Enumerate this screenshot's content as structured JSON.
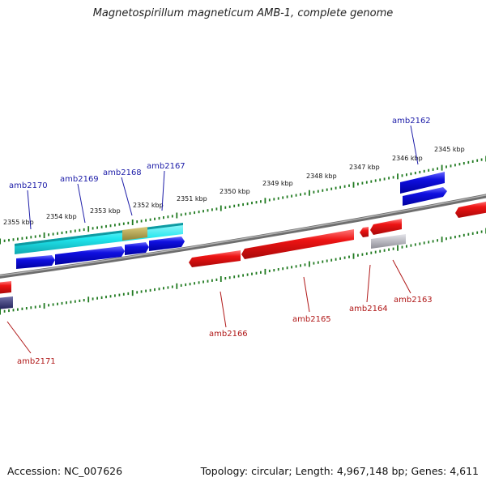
{
  "title": "Magnetospirillum magneticum AMB-1, complete genome",
  "footer": {
    "accession": "Accession: NC_007626",
    "stats": "Topology: circular; Length: 4,967,148 bp; Genes: 4,611"
  },
  "colors": {
    "plus_gene": "#1010dd",
    "minus_gene": "#ee1414",
    "rna_gene": "#20e6ee",
    "overlap": "#b8a850",
    "pseudo": "#a8a8b0",
    "dark_gene": "#3a3a78",
    "backbone": "#808080",
    "ticks": "#207a20",
    "plus_label": "#1c1ca8",
    "minus_label": "#b01818"
  },
  "kbp_labels": [
    "2345 kbp",
    "2346 kbp",
    "2347 kbp",
    "2348 kbp",
    "2349 kbp",
    "2350 kbp",
    "2351 kbp",
    "2352 kbp",
    "2353 kbp",
    "2354 kbp",
    "2355 kbp"
  ],
  "gene_labels": {
    "plus": [
      "amb2162",
      "amb2167",
      "amb2168",
      "amb2169",
      "amb2170"
    ],
    "minus": [
      "amb2163",
      "amb2164",
      "amb2165",
      "amb2166",
      "amb2171"
    ]
  }
}
